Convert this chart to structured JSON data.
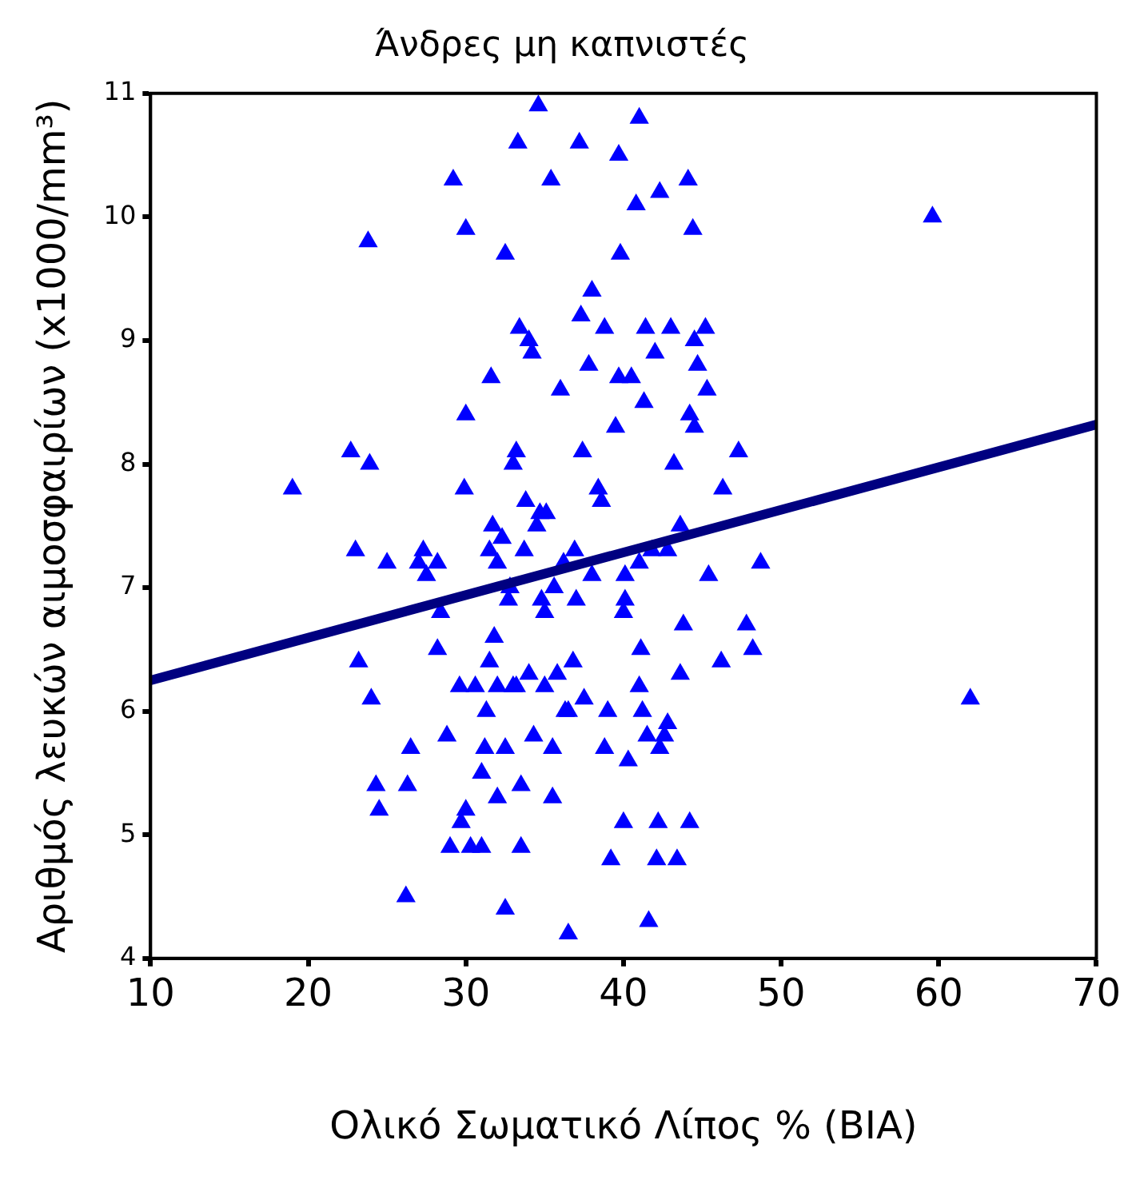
{
  "chart_data": {
    "type": "scatter",
    "title": "Άνδρες μη καπνιστές",
    "xlabel": "Ολικό Σωματικό Λίπος % (BIA)",
    "ylabel": "Αριθμός λευκών αιμοσφαιρίων (x1000/mm³)",
    "xlim": [
      10,
      70
    ],
    "xticks": [
      10,
      20,
      30,
      40,
      50,
      60,
      70
    ],
    "ylim": [
      4,
      11
    ],
    "yticks": [
      4,
      5,
      6,
      7,
      8,
      9,
      10,
      11
    ],
    "grid": false,
    "legend": false,
    "series": [
      {
        "type": "scatter",
        "marker": "triangle",
        "color": "#0000ff",
        "x": [
          19,
          22.7,
          23,
          23.2,
          23.8,
          23.9,
          24,
          24.3,
          24.5,
          25,
          26.2,
          26.3,
          26.5,
          27,
          27.3,
          27.5,
          28.2,
          28.4,
          28.2,
          28.8,
          29,
          29.2,
          29.6,
          29.7,
          29.9,
          30,
          30,
          30,
          30.3,
          30.6,
          31,
          31,
          31.2,
          31.3,
          31.5,
          31.5,
          31.6,
          31.7,
          31.8,
          32,
          32,
          32,
          32.3,
          32.5,
          32.5,
          32.5,
          32.7,
          32.8,
          33,
          33,
          33.2,
          33.2,
          33.3,
          33.4,
          33.5,
          33.5,
          33.7,
          33.8,
          34,
          34,
          34.2,
          34.3,
          34.5,
          34.6,
          34.7,
          34.8,
          35,
          35.1,
          35,
          35.4,
          35.5,
          35.5,
          35.6,
          35.8,
          36,
          36.2,
          36.3,
          36.5,
          36.5,
          36.8,
          36.9,
          37,
          37.2,
          37.4,
          37.3,
          37.5,
          37.8,
          38,
          38,
          38.4,
          38.6,
          38.8,
          38.8,
          39,
          39.2,
          39.5,
          39.7,
          39.7,
          39.8,
          40,
          40,
          40.1,
          40.1,
          40.3,
          40.5,
          40.8,
          41,
          41,
          41.1,
          41.2,
          41,
          41.3,
          41.4,
          41.5,
          41.6,
          41.8,
          42,
          42.3,
          42.2,
          42.1,
          42.3,
          42.6,
          42.8,
          42.8,
          43,
          43.2,
          43.4,
          43.6,
          43.6,
          43.8,
          44.2,
          44.1,
          44.2,
          44.4,
          44.5,
          44.5,
          44.7,
          45.2,
          45.3,
          45.4,
          46.2,
          46.3,
          47.3,
          47.8,
          48.2,
          48.7,
          59.6,
          62
        ],
        "values": [
          7.8,
          8.1,
          7.3,
          6.4,
          9.8,
          8.0,
          6.1,
          5.4,
          5.2,
          7.2,
          4.5,
          5.4,
          5.7,
          7.2,
          7.3,
          7.1,
          7.2,
          6.8,
          6.5,
          5.8,
          4.9,
          10.3,
          6.2,
          5.1,
          7.8,
          8.4,
          9.9,
          5.2,
          4.9,
          6.2,
          4.9,
          5.5,
          5.7,
          6.0,
          6.4,
          7.3,
          8.7,
          7.5,
          6.6,
          5.3,
          6.2,
          7.2,
          7.4,
          9.7,
          4.4,
          5.7,
          6.9,
          7.0,
          6.2,
          8.0,
          8.1,
          6.2,
          10.6,
          9.1,
          5.4,
          4.9,
          7.3,
          7.7,
          6.3,
          9.0,
          8.9,
          5.8,
          7.5,
          10.9,
          7.6,
          6.9,
          6.2,
          7.6,
          6.8,
          10.3,
          5.7,
          5.3,
          7.0,
          6.3,
          8.6,
          7.2,
          6.0,
          4.2,
          6.0,
          6.4,
          7.3,
          6.9,
          10.6,
          8.1,
          9.2,
          6.1,
          8.8,
          9.4,
          7.1,
          7.8,
          7.7,
          9.1,
          5.7,
          6.0,
          4.8,
          8.3,
          8.7,
          10.5,
          9.7,
          5.1,
          6.8,
          6.9,
          7.1,
          5.6,
          8.7,
          10.1,
          10.8,
          6.2,
          6.5,
          6.0,
          7.2,
          8.5,
          9.1,
          5.8,
          4.3,
          7.3,
          8.9,
          10.2,
          5.1,
          4.8,
          5.7,
          5.8,
          5.9,
          7.3,
          9.1,
          8.0,
          4.8,
          6.3,
          7.5,
          6.7,
          8.4,
          10.3,
          5.1,
          9.9,
          8.3,
          9.0,
          8.8,
          9.1,
          8.6,
          7.1,
          6.4,
          7.8,
          8.1,
          6.7,
          6.5,
          7.2,
          10.0,
          6.1
        ]
      },
      {
        "type": "line",
        "marker": "none",
        "color": "#000080",
        "x": [
          10,
          70
        ],
        "values": [
          6.25,
          8.32
        ]
      }
    ]
  }
}
